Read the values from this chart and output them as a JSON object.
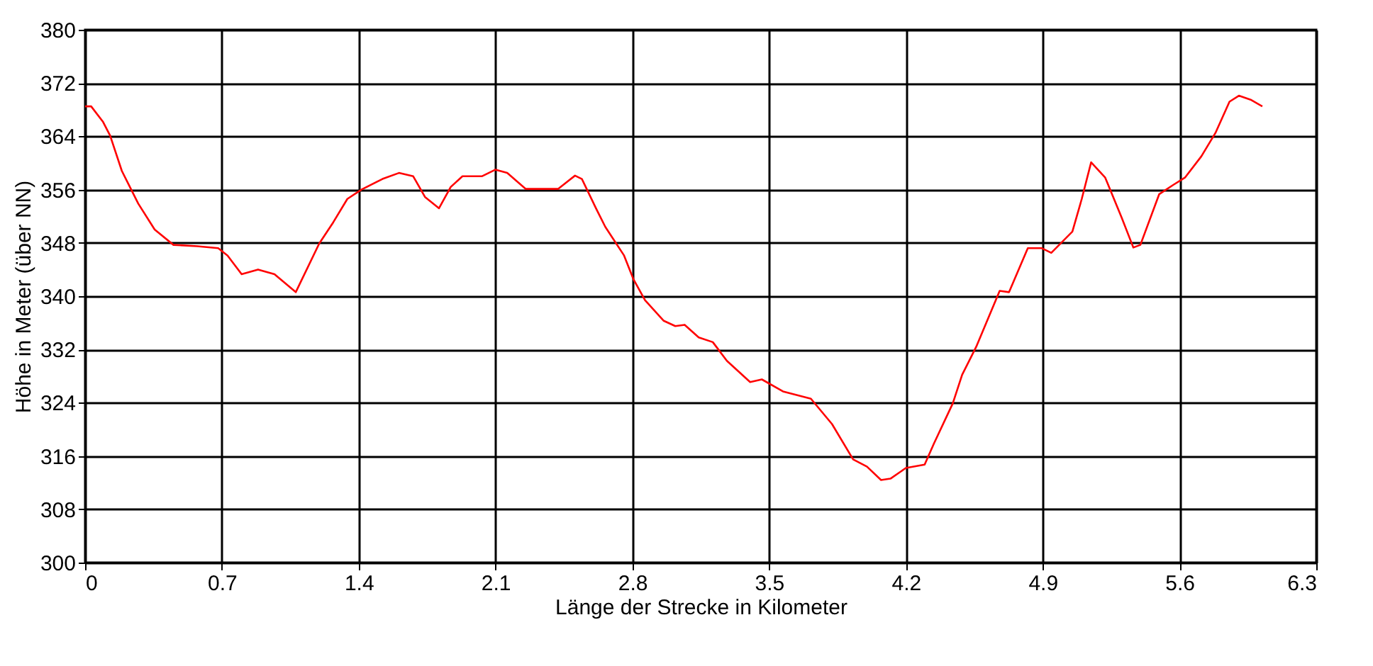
{
  "chart_data": {
    "type": "line",
    "xlabel": "Länge der Strecke in Kilometer",
    "ylabel": "Höhe in Meter (über NN)",
    "x": [
      0,
      0.031,
      0.091,
      0.128,
      0.188,
      0.272,
      0.356,
      0.452,
      0.573,
      0.681,
      0.729,
      0.801,
      0.885,
      0.969,
      1.078,
      1.198,
      1.27,
      1.342,
      1.414,
      1.522,
      1.606,
      1.679,
      1.739,
      1.811,
      1.871,
      1.931,
      2.03,
      2.1,
      2.16,
      2.255,
      2.42,
      2.507,
      2.542,
      2.614,
      2.662,
      2.758,
      2.805,
      2.865,
      2.961,
      3.02,
      3.068,
      3.14,
      3.212,
      3.284,
      3.403,
      3.463,
      3.571,
      3.714,
      3.822,
      3.93,
      4.001,
      4.073,
      4.121,
      4.2,
      4.296,
      4.344,
      4.44,
      4.488,
      4.56,
      4.68,
      4.728,
      4.824,
      4.896,
      4.944,
      5.052,
      5.1,
      5.148,
      5.22,
      5.304,
      5.364,
      5.4,
      5.496,
      5.568,
      5.628,
      5.712,
      5.784,
      5.856,
      5.904,
      5.964,
      6.024
    ],
    "series": [
      {
        "color": "#ff0000",
        "values": [
          368.5,
          368.5,
          366.2,
          364.1,
          358.8,
          353.9,
          350.0,
          347.7,
          347.5,
          347.2,
          346.1,
          343.3,
          344.0,
          343.3,
          340.6,
          347.9,
          351.1,
          354.6,
          356.0,
          357.6,
          358.5,
          358.0,
          354.9,
          353.2,
          356.4,
          358.0,
          358.0,
          359.0,
          358.5,
          356.1,
          356.1,
          358.1,
          357.6,
          353.2,
          350.4,
          346.1,
          342.6,
          339.4,
          336.3,
          335.5,
          335.7,
          333.8,
          333.1,
          330.3,
          327.1,
          327.5,
          325.7,
          324.6,
          320.8,
          315.5,
          314.4,
          312.4,
          312.6,
          314.2,
          314.7,
          317.9,
          323.9,
          328.2,
          332.4,
          340.8,
          340.6,
          347.2,
          347.2,
          346.5,
          349.7,
          354.6,
          360.1,
          357.8,
          351.8,
          347.3,
          347.7,
          355.3,
          356.7,
          357.8,
          361.0,
          364.5,
          369.2,
          370.1,
          369.5,
          368.5
        ]
      }
    ],
    "xlim": [
      0,
      6.3
    ],
    "xticks": [
      0,
      0.7,
      1.4,
      2.1,
      2.8,
      3.5,
      4.2,
      4.9,
      5.6,
      6.3
    ],
    "ylim": [
      300,
      380
    ],
    "yticks": [
      300,
      308,
      316,
      324,
      332,
      340,
      348,
      356,
      364,
      372,
      380
    ],
    "grid": true,
    "marker": "none",
    "line_style": "solid"
  }
}
